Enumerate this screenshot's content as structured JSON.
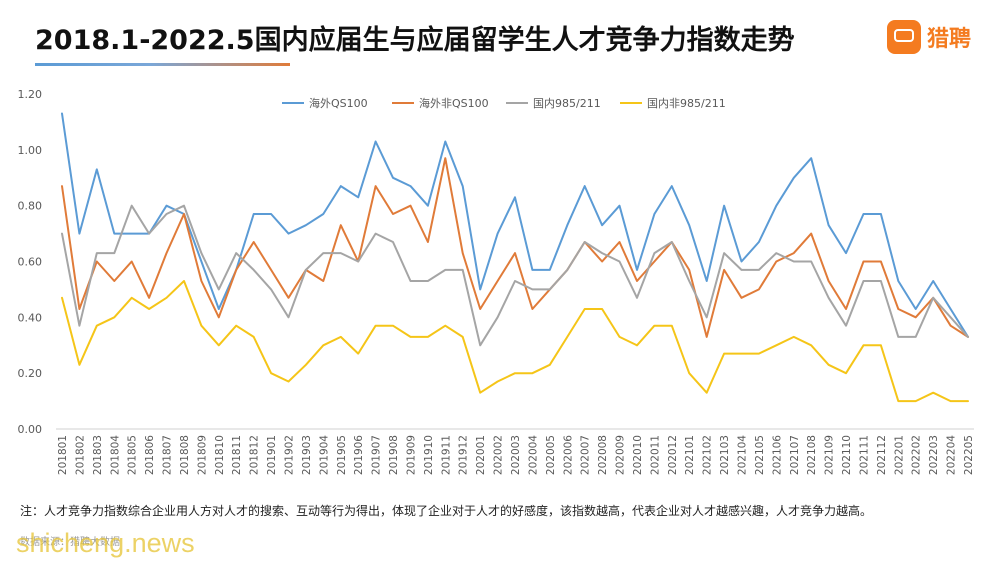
{
  "title": "2018.1-2022.5国内应届生与应届留学生人才竞争力指数走势",
  "brand": {
    "name": "猎聘",
    "mark_text": "猎聘",
    "color": "#f47b20"
  },
  "note": "注：人才竞争力指数综合企业用人方对人才的搜索、互动等行为得出，体现了企业对于人才的好感度，该指数越高，代表企业对人才越感兴趣，人才竞争力越高。",
  "source": "数据来源：猎聘大数据",
  "watermark": "shicheng.news",
  "chart_data": {
    "type": "line",
    "title": "",
    "xlabel": "",
    "ylabel": "",
    "ylim": [
      0,
      1.2
    ],
    "yticks": [
      "0.00",
      "0.20",
      "0.40",
      "0.60",
      "0.80",
      "1.00",
      "1.20"
    ],
    "grid": false,
    "legend_position": "top",
    "x": [
      "201801",
      "201802",
      "201803",
      "201804",
      "201805",
      "201806",
      "201807",
      "201808",
      "201809",
      "201810",
      "201811",
      "201812",
      "201901",
      "201902",
      "201903",
      "201904",
      "201905",
      "201906",
      "201907",
      "201908",
      "201909",
      "201910",
      "201911",
      "201912",
      "202001",
      "202002",
      "202003",
      "202004",
      "202005",
      "202006",
      "202007",
      "202008",
      "202009",
      "202010",
      "202011",
      "202012",
      "202101",
      "202102",
      "202103",
      "202104",
      "202105",
      "202106",
      "202107",
      "202108",
      "202109",
      "202110",
      "202111",
      "202112",
      "202201",
      "202202",
      "202203",
      "202204",
      "202205"
    ],
    "series": [
      {
        "name": "海外QS100",
        "color": "#5b9bd5",
        "values": [
          1.13,
          0.7,
          0.93,
          0.7,
          0.7,
          0.7,
          0.8,
          0.77,
          0.6,
          0.43,
          0.57,
          0.77,
          0.77,
          0.7,
          0.73,
          0.77,
          0.87,
          0.83,
          1.03,
          0.9,
          0.87,
          0.8,
          1.03,
          0.87,
          0.5,
          0.7,
          0.83,
          0.57,
          0.57,
          0.73,
          0.87,
          0.73,
          0.8,
          0.57,
          0.77,
          0.87,
          0.73,
          0.53,
          0.8,
          0.6,
          0.67,
          0.8,
          0.9,
          0.97,
          0.73,
          0.63,
          0.77,
          0.77,
          0.53,
          0.43,
          0.53,
          0.43,
          0.33
        ]
      },
      {
        "name": "海外非QS100",
        "color": "#e07b39",
        "values": [
          0.87,
          0.43,
          0.6,
          0.53,
          0.6,
          0.47,
          0.63,
          0.77,
          0.53,
          0.4,
          0.57,
          0.67,
          0.57,
          0.47,
          0.57,
          0.53,
          0.73,
          0.6,
          0.87,
          0.77,
          0.8,
          0.67,
          0.97,
          0.63,
          0.43,
          0.53,
          0.63,
          0.43,
          0.5,
          0.57,
          0.67,
          0.6,
          0.67,
          0.53,
          0.6,
          0.67,
          0.57,
          0.33,
          0.57,
          0.47,
          0.5,
          0.6,
          0.63,
          0.7,
          0.53,
          0.43,
          0.6,
          0.6,
          0.43,
          0.4,
          0.47,
          0.37,
          0.33
        ]
      },
      {
        "name": "国内985/211",
        "color": "#a5a5a5",
        "values": [
          0.7,
          0.37,
          0.63,
          0.63,
          0.8,
          0.7,
          0.77,
          0.8,
          0.63,
          0.5,
          0.63,
          0.57,
          0.5,
          0.4,
          0.57,
          0.63,
          0.63,
          0.6,
          0.7,
          0.67,
          0.53,
          0.53,
          0.57,
          0.57,
          0.3,
          0.4,
          0.53,
          0.5,
          0.5,
          0.57,
          0.67,
          0.63,
          0.6,
          0.47,
          0.63,
          0.67,
          0.53,
          0.4,
          0.63,
          0.57,
          0.57,
          0.63,
          0.6,
          0.6,
          0.47,
          0.37,
          0.53,
          0.53,
          0.33,
          0.33,
          0.47,
          0.4,
          0.33
        ]
      },
      {
        "name": "国内非985/211",
        "color": "#f5c518",
        "values": [
          0.47,
          0.23,
          0.37,
          0.4,
          0.47,
          0.43,
          0.47,
          0.53,
          0.37,
          0.3,
          0.37,
          0.33,
          0.2,
          0.17,
          0.23,
          0.3,
          0.33,
          0.27,
          0.37,
          0.37,
          0.33,
          0.33,
          0.37,
          0.33,
          0.13,
          0.17,
          0.2,
          0.2,
          0.23,
          0.33,
          0.43,
          0.43,
          0.33,
          0.3,
          0.37,
          0.37,
          0.2,
          0.13,
          0.27,
          0.27,
          0.27,
          0.3,
          0.33,
          0.3,
          0.23,
          0.2,
          0.3,
          0.3,
          0.1,
          0.1,
          0.13,
          0.1,
          0.1
        ]
      }
    ]
  }
}
